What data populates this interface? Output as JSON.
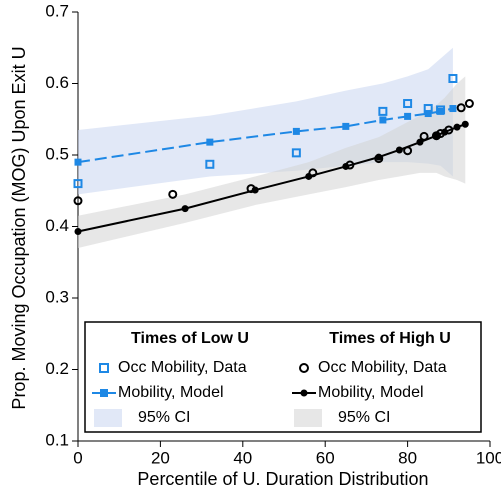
{
  "chart_data": {
    "type": "line",
    "xlabel": "Percentile of U. Duration Distribution",
    "ylabel": "Prop. Moving Occupation (MOG) Upon Exit U",
    "xlim": [
      0,
      100
    ],
    "xticks": [
      0,
      20,
      40,
      60,
      80,
      100
    ],
    "ylim": [
      0.1,
      0.7
    ],
    "yticks": [
      0.1,
      0.2,
      0.3,
      0.4,
      0.5,
      0.6,
      0.7
    ],
    "groups": [
      {
        "title": "Times of Low U",
        "series": [
          {
            "name": "Occ Mobility, Data",
            "kind": "scatter",
            "marker": "square",
            "filled": false,
            "color": "#1e88e5",
            "x": [
              0,
              32,
              53,
              74,
              80,
              85,
              88,
              91
            ],
            "values": [
              0.46,
              0.487,
              0.503,
              0.561,
              0.572,
              0.565,
              0.563,
              0.607
            ]
          },
          {
            "name": "Mobility, Model",
            "kind": "line",
            "marker": "square",
            "filled": true,
            "dashed": true,
            "color": "#1e88e5",
            "x": [
              0,
              32,
              53,
              65,
              74,
              80,
              85,
              88,
              91
            ],
            "values": [
              0.49,
              0.518,
              0.533,
              0.54,
              0.549,
              0.554,
              0.558,
              0.561,
              0.565
            ]
          },
          {
            "name": "95% CI",
            "kind": "band",
            "color": "#c9d5f0",
            "x": [
              0,
              32,
              53,
              65,
              74,
              80,
              85,
              88,
              91
            ],
            "lower": [
              0.445,
              0.47,
              0.478,
              0.485,
              0.49,
              0.49,
              0.488,
              0.485,
              0.47
            ],
            "upper": [
              0.535,
              0.555,
              0.575,
              0.59,
              0.6,
              0.61,
              0.62,
              0.635,
              0.65
            ]
          }
        ]
      },
      {
        "title": "Times of High U",
        "series": [
          {
            "name": "Occ Mobility, Data",
            "kind": "scatter",
            "marker": "circle",
            "filled": false,
            "color": "#000000",
            "x": [
              0,
              23,
              42,
              57,
              66,
              73,
              80,
              84,
              87,
              88,
              90,
              93,
              95
            ],
            "values": [
              0.436,
              0.445,
              0.453,
              0.475,
              0.486,
              0.495,
              0.506,
              0.526,
              0.527,
              0.53,
              0.535,
              0.566,
              0.572
            ]
          },
          {
            "name": "Mobility, Model",
            "kind": "line",
            "marker": "circle",
            "filled": true,
            "dashed": false,
            "color": "#000000",
            "x": [
              0,
              26,
              43,
              56,
              65,
              73,
              78,
              83,
              87,
              89,
              92,
              94
            ],
            "values": [
              0.393,
              0.425,
              0.451,
              0.47,
              0.484,
              0.497,
              0.507,
              0.518,
              0.527,
              0.532,
              0.539,
              0.543
            ]
          },
          {
            "name": "95% CI",
            "kind": "band",
            "color": "#d4d4d4",
            "x": [
              0,
              26,
              43,
              56,
              65,
              73,
              78,
              83,
              87,
              89,
              92,
              94
            ],
            "lower": [
              0.37,
              0.405,
              0.43,
              0.445,
              0.455,
              0.465,
              0.47,
              0.475,
              0.475,
              0.47,
              0.465,
              0.46
            ],
            "upper": [
              0.415,
              0.445,
              0.47,
              0.49,
              0.51,
              0.525,
              0.54,
              0.555,
              0.57,
              0.58,
              0.6,
              0.61
            ]
          }
        ]
      }
    ]
  }
}
